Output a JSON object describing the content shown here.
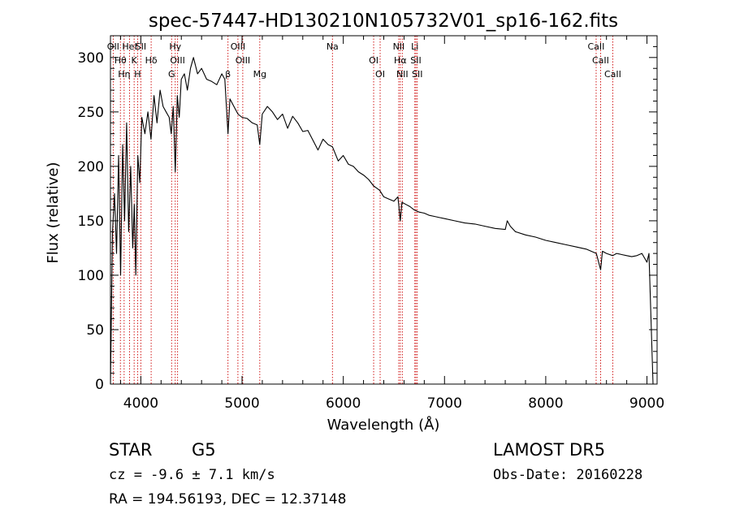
{
  "chart_data": {
    "type": "line",
    "title": "spec-57447-HD130210N105732V01_sp16-162.fits",
    "xlabel": "Wavelength (Å)",
    "ylabel": "Flux (relative)",
    "xlim": [
      3700,
      9100
    ],
    "ylim": [
      0,
      320
    ],
    "x_ticks": [
      4000,
      5000,
      6000,
      7000,
      8000,
      9000
    ],
    "y_ticks": [
      0,
      50,
      100,
      150,
      200,
      250,
      300
    ],
    "grid": false,
    "line_color": "#000000",
    "marker_color": "#cc0000",
    "series": [
      {
        "x": [
          3700,
          3720,
          3740,
          3760,
          3780,
          3800,
          3820,
          3840,
          3860,
          3880,
          3900,
          3920,
          3935,
          3950,
          3970,
          3990,
          4010,
          4040,
          4070,
          4100,
          4130,
          4160,
          4190,
          4220,
          4250,
          4280,
          4300,
          4320,
          4340,
          4360,
          4380,
          4400,
          4430,
          4460,
          4490,
          4520,
          4560,
          4600,
          4650,
          4700,
          4750,
          4800,
          4830,
          4861,
          4880,
          4920,
          4960,
          5000,
          5050,
          5100,
          5150,
          5175,
          5200,
          5250,
          5300,
          5350,
          5400,
          5450,
          5500,
          5550,
          5600,
          5650,
          5700,
          5750,
          5800,
          5850,
          5893,
          5950,
          6000,
          6050,
          6100,
          6150,
          6200,
          6250,
          6300,
          6330,
          6360,
          6400,
          6450,
          6500,
          6540,
          6563,
          6580,
          6620,
          6660,
          6700,
          6750,
          6800,
          6850,
          6900,
          6950,
          7000,
          7100,
          7200,
          7300,
          7400,
          7500,
          7600,
          7620,
          7650,
          7700,
          7800,
          7900,
          8000,
          8100,
          8200,
          8300,
          8400,
          8500,
          8542,
          8560,
          8600,
          8662,
          8700,
          8750,
          8800,
          8850,
          8900,
          8950,
          9000,
          9020,
          9040,
          9060
        ],
        "y": [
          0,
          140,
          175,
          120,
          210,
          100,
          220,
          150,
          240,
          140,
          200,
          125,
          165,
          100,
          210,
          185,
          245,
          230,
          250,
          225,
          265,
          240,
          270,
          255,
          250,
          245,
          230,
          255,
          195,
          265,
          245,
          280,
          285,
          270,
          290,
          300,
          285,
          290,
          280,
          278,
          275,
          285,
          280,
          230,
          262,
          255,
          248,
          245,
          244,
          240,
          238,
          220,
          248,
          255,
          250,
          243,
          248,
          235,
          246,
          240,
          232,
          233,
          224,
          215,
          225,
          220,
          218,
          205,
          210,
          202,
          200,
          195,
          192,
          188,
          182,
          180,
          178,
          172,
          170,
          168,
          172,
          150,
          167,
          165,
          163,
          160,
          158,
          157,
          155,
          154,
          153,
          152,
          150,
          148,
          147,
          145,
          143,
          142,
          150,
          145,
          140,
          137,
          135,
          132,
          130,
          128,
          126,
          124,
          120,
          105,
          122,
          120,
          118,
          120,
          119,
          118,
          117,
          118,
          120,
          112,
          120,
          60,
          0
        ]
      }
    ],
    "lines": [
      {
        "x": 3727,
        "label": "OII"
      },
      {
        "x": 3798,
        "label": "Hθ"
      },
      {
        "x": 3835,
        "label": "Hη"
      },
      {
        "x": 3889,
        "label": "HeI"
      },
      {
        "x": 3934,
        "label": "K"
      },
      {
        "x": 3968,
        "label": "H"
      },
      {
        "x": 4000,
        "label": "SII"
      },
      {
        "x": 4102,
        "label": "Hδ"
      },
      {
        "x": 4304,
        "label": "G"
      },
      {
        "x": 4340,
        "label": "Hγ"
      },
      {
        "x": 4363,
        "label": "OIII"
      },
      {
        "x": 4861,
        "label": "β"
      },
      {
        "x": 4959,
        "label": "OIII"
      },
      {
        "x": 5007,
        "label": "OIII"
      },
      {
        "x": 5175,
        "label": "Mg"
      },
      {
        "x": 5893,
        "label": "Na"
      },
      {
        "x": 6300,
        "label": "OI"
      },
      {
        "x": 6364,
        "label": "OI"
      },
      {
        "x": 6548,
        "label": "NII"
      },
      {
        "x": 6563,
        "label": "Hα"
      },
      {
        "x": 6583,
        "label": "NII"
      },
      {
        "x": 6707,
        "label": "Li"
      },
      {
        "x": 6717,
        "label": "SII"
      },
      {
        "x": 6731,
        "label": "SII"
      },
      {
        "x": 8498,
        "label": "CaII"
      },
      {
        "x": 8542,
        "label": "CaII"
      },
      {
        "x": 8662,
        "label": "CaII"
      }
    ]
  },
  "info": {
    "class_label": "STAR",
    "subclass_label": "G5",
    "cz_text": "cz = -9.6 ± 7.1 km/s",
    "radec_text": "RA = 194.56193, DEC =  12.37148",
    "survey_label": "LAMOST DR5",
    "obs_date_text": "Obs-Date: 20160228"
  }
}
